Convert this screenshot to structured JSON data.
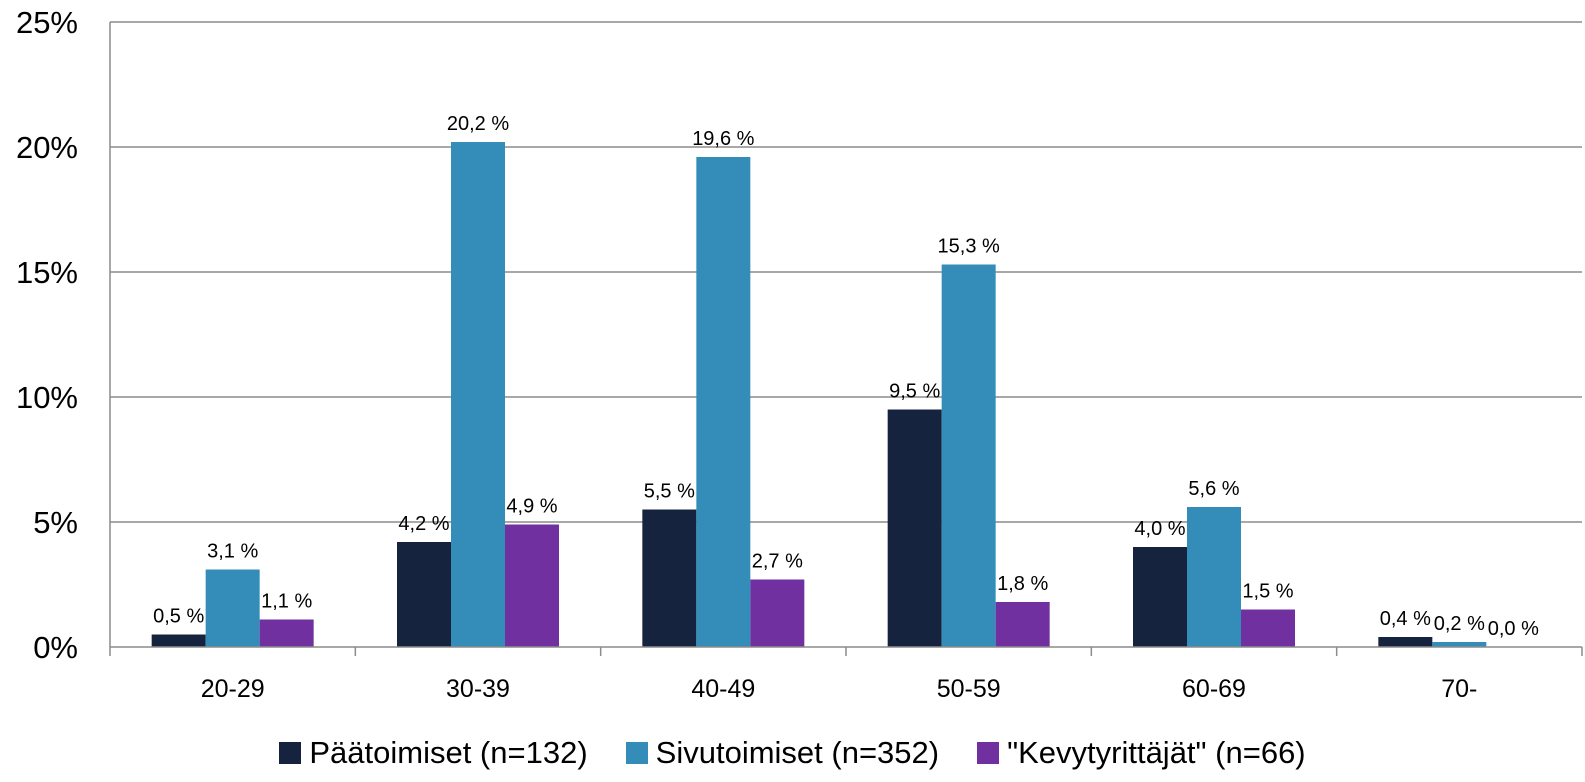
{
  "chart_data": {
    "type": "bar",
    "categories": [
      "20-29",
      "30-39",
      "40-49",
      "50-59",
      "60-69",
      "70-"
    ],
    "series": [
      {
        "name": "Päätoimiset (n=132)",
        "color": "#16233f",
        "values": [
          0.5,
          4.2,
          5.5,
          9.5,
          4.0,
          0.4
        ],
        "labels": [
          "0,5 %",
          "4,2 %",
          "5,5 %",
          "9,5 %",
          "4,0 %",
          "0,4 %"
        ]
      },
      {
        "name": "Sivutoimiset (n=352)",
        "color": "#348db8",
        "values": [
          3.1,
          20.2,
          19.6,
          15.3,
          5.6,
          0.2
        ],
        "labels": [
          "3,1 %",
          "20,2 %",
          "19,6 %",
          "15,3 %",
          "5,6 %",
          "0,2 %"
        ]
      },
      {
        "name": "\"Kevytyrittäjät\" (n=66)",
        "color": "#7030a0",
        "values": [
          1.1,
          4.9,
          2.7,
          1.8,
          1.5,
          0.0
        ],
        "labels": [
          "1,1 %",
          "4,9 %",
          "2,7 %",
          "1,8 %",
          "1,5 %",
          "0,0 %"
        ]
      }
    ],
    "y_ticks": [
      0,
      5,
      10,
      15,
      20,
      25
    ],
    "y_tick_labels": [
      "0%",
      "5%",
      "10%",
      "15%",
      "20%",
      "25%"
    ],
    "ylim": [
      0,
      25
    ],
    "grid": true,
    "legend_position": "bottom"
  }
}
